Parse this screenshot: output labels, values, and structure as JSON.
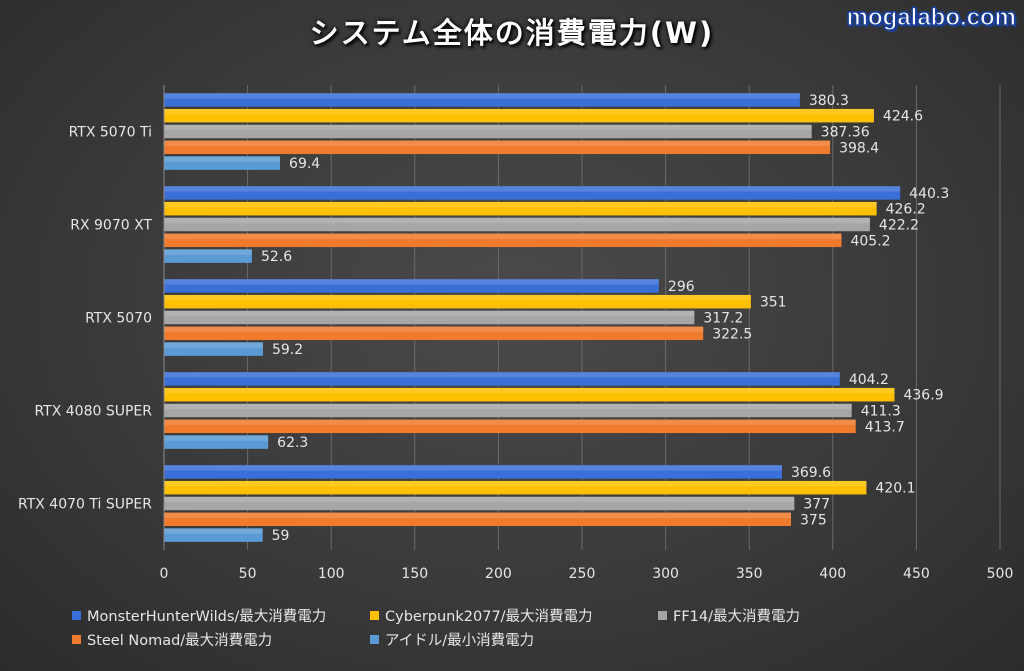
{
  "title": "システム全体の消費電力(W)",
  "watermark": "mogalabo.com",
  "chart_data": {
    "type": "bar",
    "orientation": "horizontal",
    "title": "システム全体の消費電力(W)",
    "categories": [
      "RTX 5070 Ti",
      "RX 9070 XT",
      "RTX 5070",
      "RTX 4080 SUPER",
      "RTX 4070 Ti SUPER"
    ],
    "series": [
      {
        "name": "MonsterHunterWilds/最大消費電力",
        "color": "#3a6fd8",
        "values": [
          380.3,
          440.3,
          296,
          404.2,
          369.6
        ],
        "labels": [
          "380.3",
          "440.3",
          "296",
          "404.2",
          "369.6"
        ]
      },
      {
        "name": "Cyberpunk2077/最大消費電力",
        "color": "#ffc000",
        "values": [
          424.6,
          426.2,
          351,
          436.9,
          420.1
        ],
        "labels": [
          "424.6",
          "426.2",
          "351",
          "436.9",
          "420.1"
        ]
      },
      {
        "name": "FF14/最大消費電力",
        "color": "#a6a6a6",
        "values": [
          387.36,
          422.2,
          317.2,
          411.3,
          377
        ],
        "labels": [
          "387.36",
          "422.2",
          "317.2",
          "411.3",
          "377"
        ]
      },
      {
        "name": "Steel Nomad/最大消費電力",
        "color": "#f07b2c",
        "values": [
          398.4,
          405.2,
          322.5,
          413.7,
          375
        ],
        "labels": [
          "398.4",
          "405.2",
          "322.5",
          "413.7",
          "375"
        ]
      },
      {
        "name": "アイドル/最小消費電力",
        "color": "#5b9bd5",
        "values": [
          69.4,
          52.6,
          59.2,
          62.3,
          59
        ],
        "labels": [
          "69.4",
          "52.6",
          "59.2",
          "62.3",
          "59"
        ]
      }
    ],
    "xlim": [
      0,
      500
    ],
    "xticks": [
      "0",
      "50",
      "100",
      "150",
      "200",
      "250",
      "300",
      "350",
      "400",
      "450",
      "500"
    ],
    "grid": true,
    "legend_position": "bottom"
  }
}
